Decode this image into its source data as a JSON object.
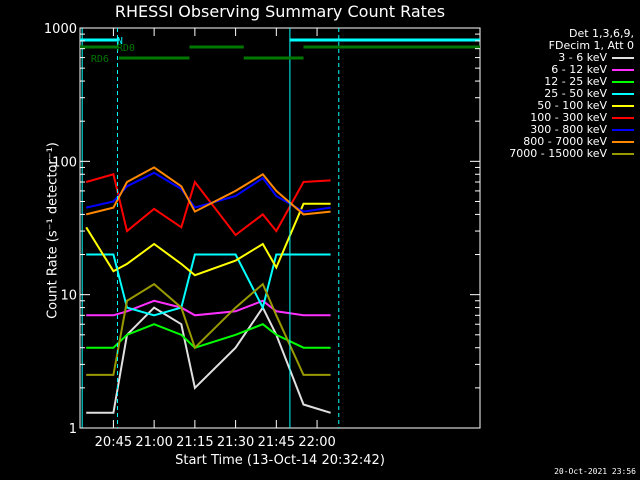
{
  "chart_data": {
    "type": "line",
    "title": "RHESSI Observing Summary Count Rates",
    "xlabel": "Start Time (13-Oct-14 20:32:42)",
    "ylabel": "Count Rate (s⁻¹ detector⁻¹)",
    "yscale": "log",
    "ylim": [
      1,
      1000
    ],
    "xlim": [
      "20:32:42",
      "23:00:00"
    ],
    "x_ticks": [
      "20:45",
      "21:00",
      "21:15",
      "21:30",
      "21:45",
      "22:00"
    ],
    "y_ticks": [
      "1",
      "10",
      "100",
      "1000"
    ],
    "legend_position": "right",
    "legend_header": [
      "Det 1,3,6,9,",
      "FDecim 1, Att 0"
    ],
    "series": [
      {
        "name": "3 - 6 keV",
        "color": "#e0e0e0",
        "x": [
          "20:35",
          "20:45",
          "20:50",
          "21:00",
          "21:10",
          "21:15",
          "21:30",
          "21:40",
          "21:45",
          "21:55",
          "22:05"
        ],
        "values": [
          1.3,
          1.3,
          5,
          8,
          6,
          2,
          4,
          8,
          5,
          1.5,
          1.3
        ]
      },
      {
        "name": "6 - 12 keV",
        "color": "#ff30ff",
        "x": [
          "20:35",
          "20:45",
          "20:50",
          "21:00",
          "21:10",
          "21:15",
          "21:30",
          "21:40",
          "21:45",
          "21:55",
          "22:05"
        ],
        "values": [
          7,
          7,
          7.5,
          9,
          8,
          7,
          7.5,
          9,
          7.5,
          7,
          7
        ]
      },
      {
        "name": "12 - 25 keV",
        "color": "#00ff00",
        "x": [
          "20:35",
          "20:45",
          "20:50",
          "21:00",
          "21:10",
          "21:15",
          "21:30",
          "21:40",
          "21:45",
          "21:55",
          "22:05"
        ],
        "values": [
          4,
          4,
          5,
          6,
          5,
          4,
          5,
          6,
          5,
          4,
          4
        ]
      },
      {
        "name": "25 - 50 keV",
        "color": "#00ffff",
        "x": [
          "20:35",
          "20:45",
          "20:50",
          "21:00",
          "21:10",
          "21:15",
          "21:30",
          "21:40",
          "21:45",
          "21:55",
          "22:05"
        ],
        "values": [
          20,
          20,
          8,
          7,
          8,
          20,
          20,
          8,
          20,
          20,
          20
        ]
      },
      {
        "name": "50 - 100 keV",
        "color": "#ffff00",
        "x": [
          "20:35",
          "20:45",
          "20:50",
          "21:00",
          "21:10",
          "21:15",
          "21:30",
          "21:40",
          "21:45",
          "21:55",
          "22:05"
        ],
        "values": [
          32,
          15,
          17,
          24,
          17,
          14,
          18,
          24,
          16,
          48,
          48
        ]
      },
      {
        "name": "100 - 300 keV",
        "color": "#ff0000",
        "x": [
          "20:35",
          "20:45",
          "20:50",
          "21:00",
          "21:10",
          "21:15",
          "21:30",
          "21:40",
          "21:45",
          "21:55",
          "22:05"
        ],
        "values": [
          70,
          80,
          30,
          44,
          32,
          70,
          28,
          40,
          30,
          70,
          72
        ]
      },
      {
        "name": "300 - 800 keV",
        "color": "#0000ff",
        "x": [
          "20:35",
          "20:45",
          "20:50",
          "21:00",
          "21:10",
          "21:15",
          "21:30",
          "21:40",
          "21:45",
          "21:55",
          "22:05"
        ],
        "values": [
          45,
          50,
          65,
          82,
          62,
          45,
          55,
          75,
          55,
          42,
          45
        ]
      },
      {
        "name": "800 - 7000 keV",
        "color": "#ff8800",
        "x": [
          "20:35",
          "20:45",
          "20:50",
          "21:00",
          "21:10",
          "21:15",
          "21:30",
          "21:40",
          "21:45",
          "21:55",
          "22:05"
        ],
        "values": [
          40,
          45,
          70,
          90,
          65,
          42,
          60,
          80,
          60,
          40,
          42
        ]
      },
      {
        "name": "7000 - 15000 keV",
        "color": "#999900",
        "x": [
          "20:35",
          "20:45",
          "20:50",
          "21:00",
          "21:10",
          "21:15",
          "21:30",
          "21:40",
          "21:45",
          "21:55",
          "22:05"
        ],
        "values": [
          2.5,
          2.5,
          9,
          12,
          8,
          4,
          8,
          12,
          7,
          2.5,
          2.5
        ]
      }
    ],
    "annotations": [
      {
        "label": "N",
        "color": "#00ffff",
        "x": [
          "20:32:42",
          "20:47:00"
        ],
        "y_level": 1
      },
      {
        "label": "RD0",
        "color": "#007700",
        "x": [
          "20:32:42",
          "20:47:00"
        ],
        "y_level": 2
      },
      {
        "label": "RD6",
        "color": "#007700",
        "x": [
          "20:47:00",
          "21:13:00"
        ],
        "y_level": 3
      },
      {
        "label": "",
        "color": "#007700",
        "x": [
          "21:13:00",
          "21:33:00"
        ],
        "y_level": 2
      },
      {
        "label": "",
        "color": "#007700",
        "x": [
          "21:33:00",
          "21:55:00"
        ],
        "y_level": 3
      },
      {
        "label": "",
        "color": "#00ffff",
        "x": [
          "21:50:00",
          "23:00:00"
        ],
        "y_level": 1
      },
      {
        "label": "",
        "color": "#007700",
        "x": [
          "21:55:00",
          "23:00:00"
        ],
        "y_level": 2
      }
    ],
    "markers": [
      {
        "time": "20:33:30",
        "color": "#00ffff",
        "style": "solid"
      },
      {
        "time": "20:46:30",
        "color": "#00ffff",
        "style": "dashed"
      },
      {
        "time": "21:50:00",
        "color": "#00ffff",
        "style": "solid"
      },
      {
        "time": "22:08:00",
        "color": "#00ffff",
        "style": "dashed"
      }
    ]
  },
  "date_stamp": "20-Oct-2021 23:56"
}
